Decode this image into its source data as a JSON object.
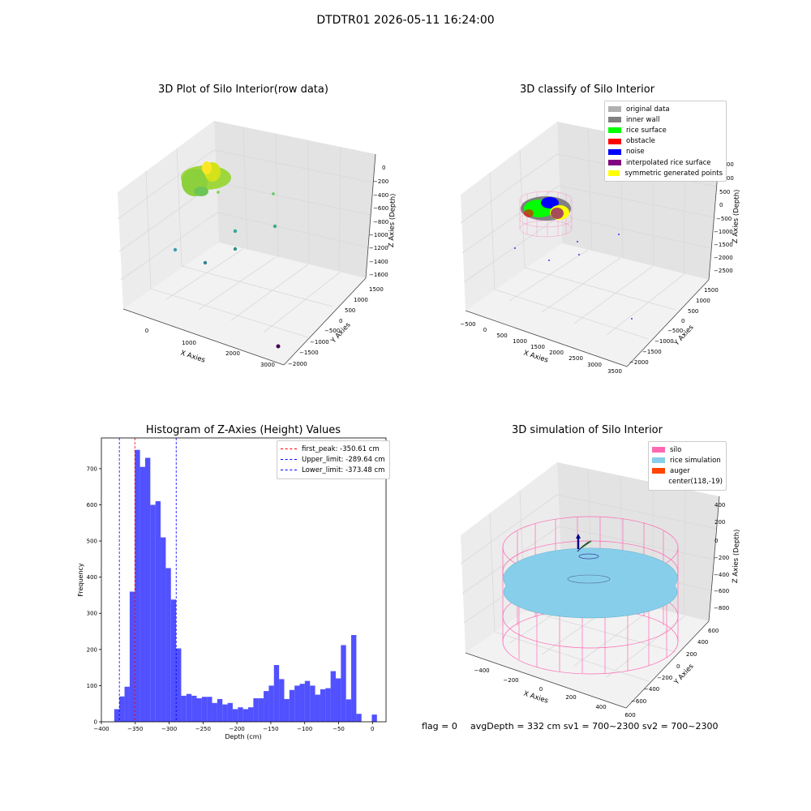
{
  "suptitle": "DTDTR01 2026-05-11 16:24:00",
  "colors": {
    "grid": "#d9d9d9",
    "pane_left": "#ececec",
    "pane_right": "#e3e3e3",
    "pane_floor": "#f2f2f2",
    "histogram_bar": "#3333ff",
    "silo": "#ff69b4",
    "rice_simulation": "#87ceeb",
    "auger": "#ff4500",
    "original_data": "#b0b0b0",
    "inner_wall": "#808080",
    "rice_surface": "#00ff00",
    "obstacle": "#ff0000",
    "noise": "#0000ff",
    "interpolated_rice_surface": "#800080",
    "symmetric_generated_points": "#ffff00"
  },
  "plot1": {
    "title": "3D Plot of Silo Interior(row data)",
    "type": "scatter3d",
    "xlabel": "X Axies",
    "ylabel": "Y Axies",
    "zlabel": "Z Axies (Depth)",
    "xticks": [
      "0",
      "1000",
      "2000",
      "3000"
    ],
    "yticks": [
      "1500",
      "1000",
      "500",
      "0",
      "−500",
      "−1000",
      "−1500",
      "−2000"
    ],
    "zticks": [
      "0",
      "−200",
      "−400",
      "−600",
      "−800",
      "−1000",
      "−1200",
      "−1400",
      "−1600"
    ]
  },
  "plot2": {
    "title": "3D classify of Silo Interior",
    "type": "scatter3d",
    "xlabel": "X Axies",
    "ylabel": "Y Axies",
    "zlabel": "Z Axies (Depth)",
    "xticks": [
      "−500",
      "0",
      "500",
      "1000",
      "1500",
      "2000",
      "2500",
      "3000",
      "3500"
    ],
    "yticks": [
      "1500",
      "1000",
      "500",
      "0",
      "−500",
      "−1000",
      "−1500",
      "−2000"
    ],
    "zticks": [
      "1500",
      "1000",
      "500",
      "0",
      "−500",
      "−1000",
      "−1500",
      "−2000",
      "−2500"
    ],
    "legend": [
      {
        "label": "original data",
        "color": "#b0b0b0"
      },
      {
        "label": "inner wall",
        "color": "#808080"
      },
      {
        "label": "rice surface",
        "color": "#00ff00"
      },
      {
        "label": "obstacle",
        "color": "#ff0000"
      },
      {
        "label": "noise",
        "color": "#0000ff"
      },
      {
        "label": "interpolated rice surface",
        "color": "#800080"
      },
      {
        "label": "symmetric generated points",
        "color": "#ffff00"
      }
    ]
  },
  "chart_data": {
    "type": "bar",
    "title": "Histogram of Z-Axies (Height) Values",
    "xlabel": "Depth (cm)",
    "ylabel": "Frequency",
    "xlim": [
      -400,
      20
    ],
    "ylim": [
      0,
      785
    ],
    "xticks": [
      -400,
      -350,
      -300,
      -250,
      -200,
      -150,
      -100,
      -50,
      0
    ],
    "xtick_labels": [
      "−400",
      "−350",
      "−300",
      "−250",
      "−200",
      "−150",
      "−100",
      "−50",
      "0"
    ],
    "yticks": [
      0,
      100,
      200,
      300,
      400,
      500,
      600,
      700
    ],
    "bin_width": 7.6,
    "bin_starts": [
      -381,
      -373.4,
      -365.8,
      -358.2,
      -350.6,
      -343,
      -335.4,
      -327.8,
      -320.2,
      -312.6,
      -305,
      -297.4,
      -289.8,
      -282.2,
      -274.6,
      -267,
      -259.4,
      -251.8,
      -244.2,
      -236.6,
      -229,
      -221.4,
      -213.8,
      -206.2,
      -198.6,
      -191,
      -183.4,
      -175.8,
      -168.2,
      -160.6,
      -153,
      -145.4,
      -137.8,
      -130.2,
      -122.6,
      -115,
      -107.4,
      -99.8,
      -92.2,
      -84.6,
      -77,
      -69.4,
      -61.8,
      -54.2,
      -46.6,
      -39,
      -31.4,
      -23.8,
      -16.2,
      -8.6,
      -1
    ],
    "values": [
      35,
      70,
      97,
      360,
      752,
      705,
      730,
      600,
      610,
      510,
      425,
      338,
      203,
      72,
      77,
      72,
      65,
      69,
      69,
      52,
      63,
      48,
      52,
      35,
      40,
      35,
      40,
      65,
      65,
      85,
      100,
      157,
      118,
      63,
      88,
      100,
      105,
      113,
      100,
      75,
      90,
      93,
      140,
      120,
      212,
      62,
      240,
      22,
      0,
      0,
      20
    ],
    "reference_lines": [
      {
        "name": "first_peak: -350.61 cm",
        "x": -350.61,
        "color": "#ff0000"
      },
      {
        "name": "Upper_limit: -289.64 cm",
        "x": -289.64,
        "color": "#0000ff"
      },
      {
        "name": "Lower_limit: -373.48 cm",
        "x": -373.48,
        "color": "#0000ff"
      }
    ]
  },
  "plot4": {
    "title": "3D simulation of Silo Interior",
    "type": "surface3d",
    "xlabel": "X Axies",
    "ylabel": "Y Axies",
    "zlabel": "Z Axies (Depth)",
    "xticks": [
      "−400",
      "−200",
      "0",
      "200",
      "400",
      "600"
    ],
    "yticks": [
      "600",
      "400",
      "200",
      "0",
      "−200",
      "−400",
      "−600"
    ],
    "zticks": [
      "400",
      "200",
      "0",
      "−200",
      "−400",
      "−600",
      "−800"
    ],
    "legend": [
      {
        "label": "silo",
        "color": "#ff69b4"
      },
      {
        "label": "rice simulation",
        "color": "#87ceeb"
      },
      {
        "label": "auger",
        "color": "#ff4500"
      },
      {
        "label": "center(118,-19)",
        "color": ""
      }
    ]
  },
  "footer": {
    "flag": "flag = 0",
    "stats": "avgDepth = 332 cm  sv1 = 700~2300  sv2 = 700~2300"
  }
}
